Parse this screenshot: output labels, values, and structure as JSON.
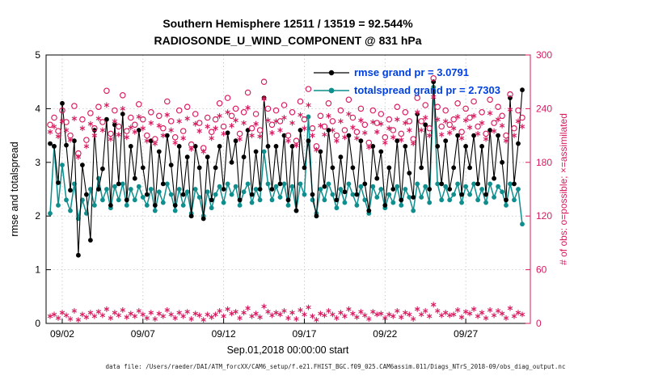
{
  "title": {
    "line1": "Southern Hemisphere 12511 / 13519 = 92.544%",
    "line2": "RADIOSONDE_U_WIND_COMPONENT @ 831 hPa"
  },
  "axes": {
    "left_label": "rmse and totalspread",
    "right_label": "# of obs: o=possible; ×=assimilated",
    "x_label": "Sep.01,2018 00:00:00 start",
    "left_ticks": [
      0,
      1,
      2,
      3,
      4,
      5
    ],
    "right_ticks": [
      0,
      60,
      120,
      180,
      240,
      300
    ],
    "x_ticks": [
      {
        "day": 1,
        "label": "09/02"
      },
      {
        "day": 6,
        "label": "09/07"
      },
      {
        "day": 11,
        "label": "09/12"
      },
      {
        "day": 16,
        "label": "09/17"
      },
      {
        "day": 21,
        "label": "09/22"
      },
      {
        "day": 26,
        "label": "09/27"
      }
    ]
  },
  "legend": [
    {
      "label": "rmse grand pr = 3.0791",
      "series": "rmse"
    },
    {
      "label": "totalspread grand pr = 2.7303",
      "series": "totalspread"
    }
  ],
  "caption": "data file: /Users/raeder/DAI/ATM_forcXX/CAM6_setup/f.e21.FHIST_BGC.f09_025.CAM6assim.011/Diags_NTrS_2018-09/obs_diag_output.nc",
  "colors": {
    "rmse": "#000000",
    "totalspread": "#0f8e8e",
    "obs": "#d81b5f",
    "legend_text": "#0040e0"
  },
  "chart_data": {
    "type": "line",
    "title": "Southern Hemisphere 12511 / 13519 = 92.544% | RADIOSONDE_U_WIND_COMPONENT @ 831 hPa",
    "xlabel": "Sep.01,2018 00:00:00 start",
    "ylabel_left": "rmse and totalspread",
    "ylabel_right": "# of obs: o=possible; ×=assimilated",
    "x_start_day": 0.25,
    "x_step_day": 0.25,
    "x_range_days": [
      0,
      30
    ],
    "left_ylim": [
      0,
      5
    ],
    "right_ylim": [
      0,
      300
    ],
    "grid": true,
    "legend_position": "top-center-inside",
    "grand_pr": {
      "rmse": 3.0791,
      "totalspread": 2.7303
    },
    "counts": {
      "assimilated_total": 12511,
      "possible_total": 13519,
      "percent_assimilated": 92.544
    },
    "series": [
      {
        "name": "rmse",
        "axis": "left",
        "marker": "dot",
        "line": true,
        "color": "#000000",
        "values": [
          3.35,
          3.3,
          2.62,
          4.1,
          3.32,
          2.48,
          3.4,
          1.27,
          2.95,
          2.4,
          1.55,
          3.6,
          2.5,
          2.88,
          3.8,
          2.2,
          3.7,
          2.6,
          3.9,
          2.3,
          3.3,
          2.7,
          3.6,
          2.9,
          2.4,
          3.4,
          2.2,
          3.2,
          2.6,
          3.5,
          2.95,
          2.2,
          3.3,
          2.4,
          3.1,
          2.0,
          3.3,
          2.9,
          1.95,
          3.1,
          2.3,
          2.9,
          3.3,
          2.5,
          3.55,
          3.0,
          3.4,
          2.3,
          3.1,
          3.6,
          2.4,
          3.2,
          2.5,
          4.2,
          3.3,
          2.5,
          3.3,
          2.6,
          3.5,
          2.3,
          3.3,
          2.1,
          3.6,
          2.9,
          3.4,
          2.4,
          2.0,
          3.2,
          2.55,
          3.6,
          2.9,
          2.3,
          3.1,
          2.45,
          3.5,
          2.9,
          2.4,
          3.4,
          2.6,
          2.1,
          3.3,
          2.7,
          3.2,
          2.2,
          2.9,
          2.5,
          3.4,
          2.3,
          3.3,
          2.8,
          2.35,
          3.9,
          2.9,
          3.7,
          2.5,
          4.5,
          3.3,
          2.6,
          3.4,
          2.5,
          2.9,
          3.5,
          2.4,
          3.3,
          2.9,
          3.5,
          2.6,
          3.3,
          2.4,
          3.6,
          2.7,
          3.5,
          3.0,
          2.3,
          4.2,
          2.6,
          3.35,
          4.35
        ]
      },
      {
        "name": "totalspread",
        "axis": "left",
        "marker": "dot",
        "line": true,
        "color": "#0f8e8e",
        "values": [
          2.05,
          3.3,
          2.2,
          2.95,
          2.3,
          2.1,
          2.6,
          1.95,
          2.3,
          2.05,
          2.5,
          2.2,
          2.7,
          2.3,
          2.5,
          2.15,
          2.55,
          2.3,
          2.6,
          2.2,
          2.5,
          2.3,
          2.55,
          2.35,
          2.2,
          2.5,
          2.1,
          2.45,
          2.25,
          2.6,
          2.4,
          2.1,
          2.5,
          2.2,
          2.45,
          2.05,
          2.5,
          2.35,
          2.0,
          2.45,
          2.15,
          2.4,
          2.55,
          2.25,
          2.6,
          2.4,
          2.55,
          2.2,
          2.45,
          2.6,
          2.25,
          2.5,
          2.3,
          3.2,
          2.6,
          2.3,
          2.55,
          2.35,
          2.6,
          2.2,
          2.55,
          2.1,
          2.6,
          2.4,
          3.85,
          2.3,
          2.05,
          2.5,
          2.3,
          2.6,
          2.4,
          2.15,
          2.5,
          2.25,
          2.6,
          2.4,
          2.2,
          2.55,
          2.3,
          2.05,
          2.55,
          2.35,
          2.5,
          2.15,
          2.4,
          2.25,
          2.55,
          2.2,
          2.5,
          2.35,
          2.1,
          2.6,
          2.35,
          2.55,
          2.25,
          4.4,
          2.6,
          2.3,
          2.55,
          2.3,
          2.4,
          2.6,
          2.25,
          2.55,
          2.4,
          2.6,
          2.3,
          2.5,
          2.25,
          2.6,
          2.35,
          2.55,
          2.45,
          2.2,
          2.6,
          2.3,
          2.5,
          1.85
        ]
      },
      {
        "name": "possible",
        "axis": "right",
        "marker": "circle-open",
        "line": false,
        "color": "#d81b5f",
        "values": [
          222,
          230,
          215,
          238,
          225,
          210,
          243,
          190,
          228,
          205,
          235,
          218,
          242,
          225,
          260,
          212,
          238,
          220,
          255,
          215,
          230,
          222,
          245,
          228,
          210,
          236,
          206,
          232,
          218,
          248,
          226,
          208,
          238,
          215,
          242,
          200,
          234,
          224,
          196,
          230,
          214,
          228,
          246,
          220,
          252,
          232,
          240,
          212,
          236,
          258,
          218,
          234,
          216,
          270,
          240,
          222,
          238,
          226,
          244,
          210,
          236,
          204,
          248,
          228,
          262,
          218,
          198,
          232,
          220,
          246,
          226,
          210,
          238,
          216,
          250,
          230,
          214,
          240,
          222,
          202,
          238,
          224,
          234,
          208,
          228,
          216,
          242,
          212,
          236,
          226,
          206,
          252,
          226,
          244,
          218,
          274,
          242,
          220,
          238,
          222,
          228,
          246,
          214,
          240,
          230,
          248,
          220,
          236,
          212,
          250,
          224,
          242,
          232,
          210,
          256,
          218,
          238,
          230
        ]
      },
      {
        "name": "assimilated",
        "axis": "right",
        "marker": "asterisk",
        "line": false,
        "color": "#d81b5f",
        "values": [
          214,
          220,
          209,
          226,
          216,
          205,
          229,
          186,
          218,
          198,
          223,
          210,
          229,
          216,
          244,
          206,
          226,
          211,
          240,
          208,
          219,
          214,
          231,
          218,
          204,
          224,
          201,
          221,
          210,
          233,
          216,
          202,
          226,
          207,
          229,
          195,
          223,
          215,
          192,
          220,
          207,
          218,
          232,
          212,
          236,
          221,
          227,
          206,
          224,
          241,
          210,
          223,
          209,
          251,
          227,
          213,
          226,
          216,
          230,
          204,
          224,
          199,
          233,
          218,
          244,
          210,
          194,
          221,
          211,
          232,
          216,
          204,
          226,
          208,
          234,
          219,
          207,
          227,
          213,
          197,
          225,
          214,
          223,
          202,
          218,
          208,
          228,
          205,
          224,
          216,
          201,
          236,
          216,
          230,
          210,
          253,
          228,
          211,
          226,
          213,
          218,
          231,
          207,
          227,
          219,
          232,
          212,
          224,
          206,
          235,
          215,
          228,
          221,
          204,
          239,
          210,
          226,
          220
        ]
      },
      {
        "name": "bottom_markers",
        "axis": "right",
        "marker": "asterisk",
        "line": false,
        "color": "#d81b5f",
        "values": [
          8,
          10,
          6,
          12,
          9,
          5,
          14,
          4,
          10,
          7,
          12,
          8,
          13,
          9,
          16,
          6,
          12,
          9,
          15,
          7,
          11,
          8,
          14,
          10,
          6,
          12,
          5,
          11,
          8,
          15,
          10,
          6,
          12,
          8,
          13,
          5,
          11,
          9,
          4,
          10,
          7,
          10,
          14,
          8,
          16,
          11,
          13,
          6,
          12,
          17,
          8,
          11,
          7,
          19,
          13,
          9,
          12,
          10,
          14,
          6,
          12,
          5,
          15,
          10,
          18,
          8,
          4,
          11,
          9,
          14,
          10,
          6,
          12,
          8,
          16,
          11,
          7,
          13,
          9,
          5,
          13,
          10,
          11,
          6,
          10,
          8,
          14,
          7,
          12,
          10,
          5,
          16,
          10,
          14,
          8,
          21,
          14,
          9,
          12,
          9,
          10,
          15,
          7,
          13,
          11,
          16,
          8,
          12,
          6,
          15,
          9,
          14,
          11,
          6,
          17,
          8,
          12,
          10
        ]
      }
    ]
  }
}
